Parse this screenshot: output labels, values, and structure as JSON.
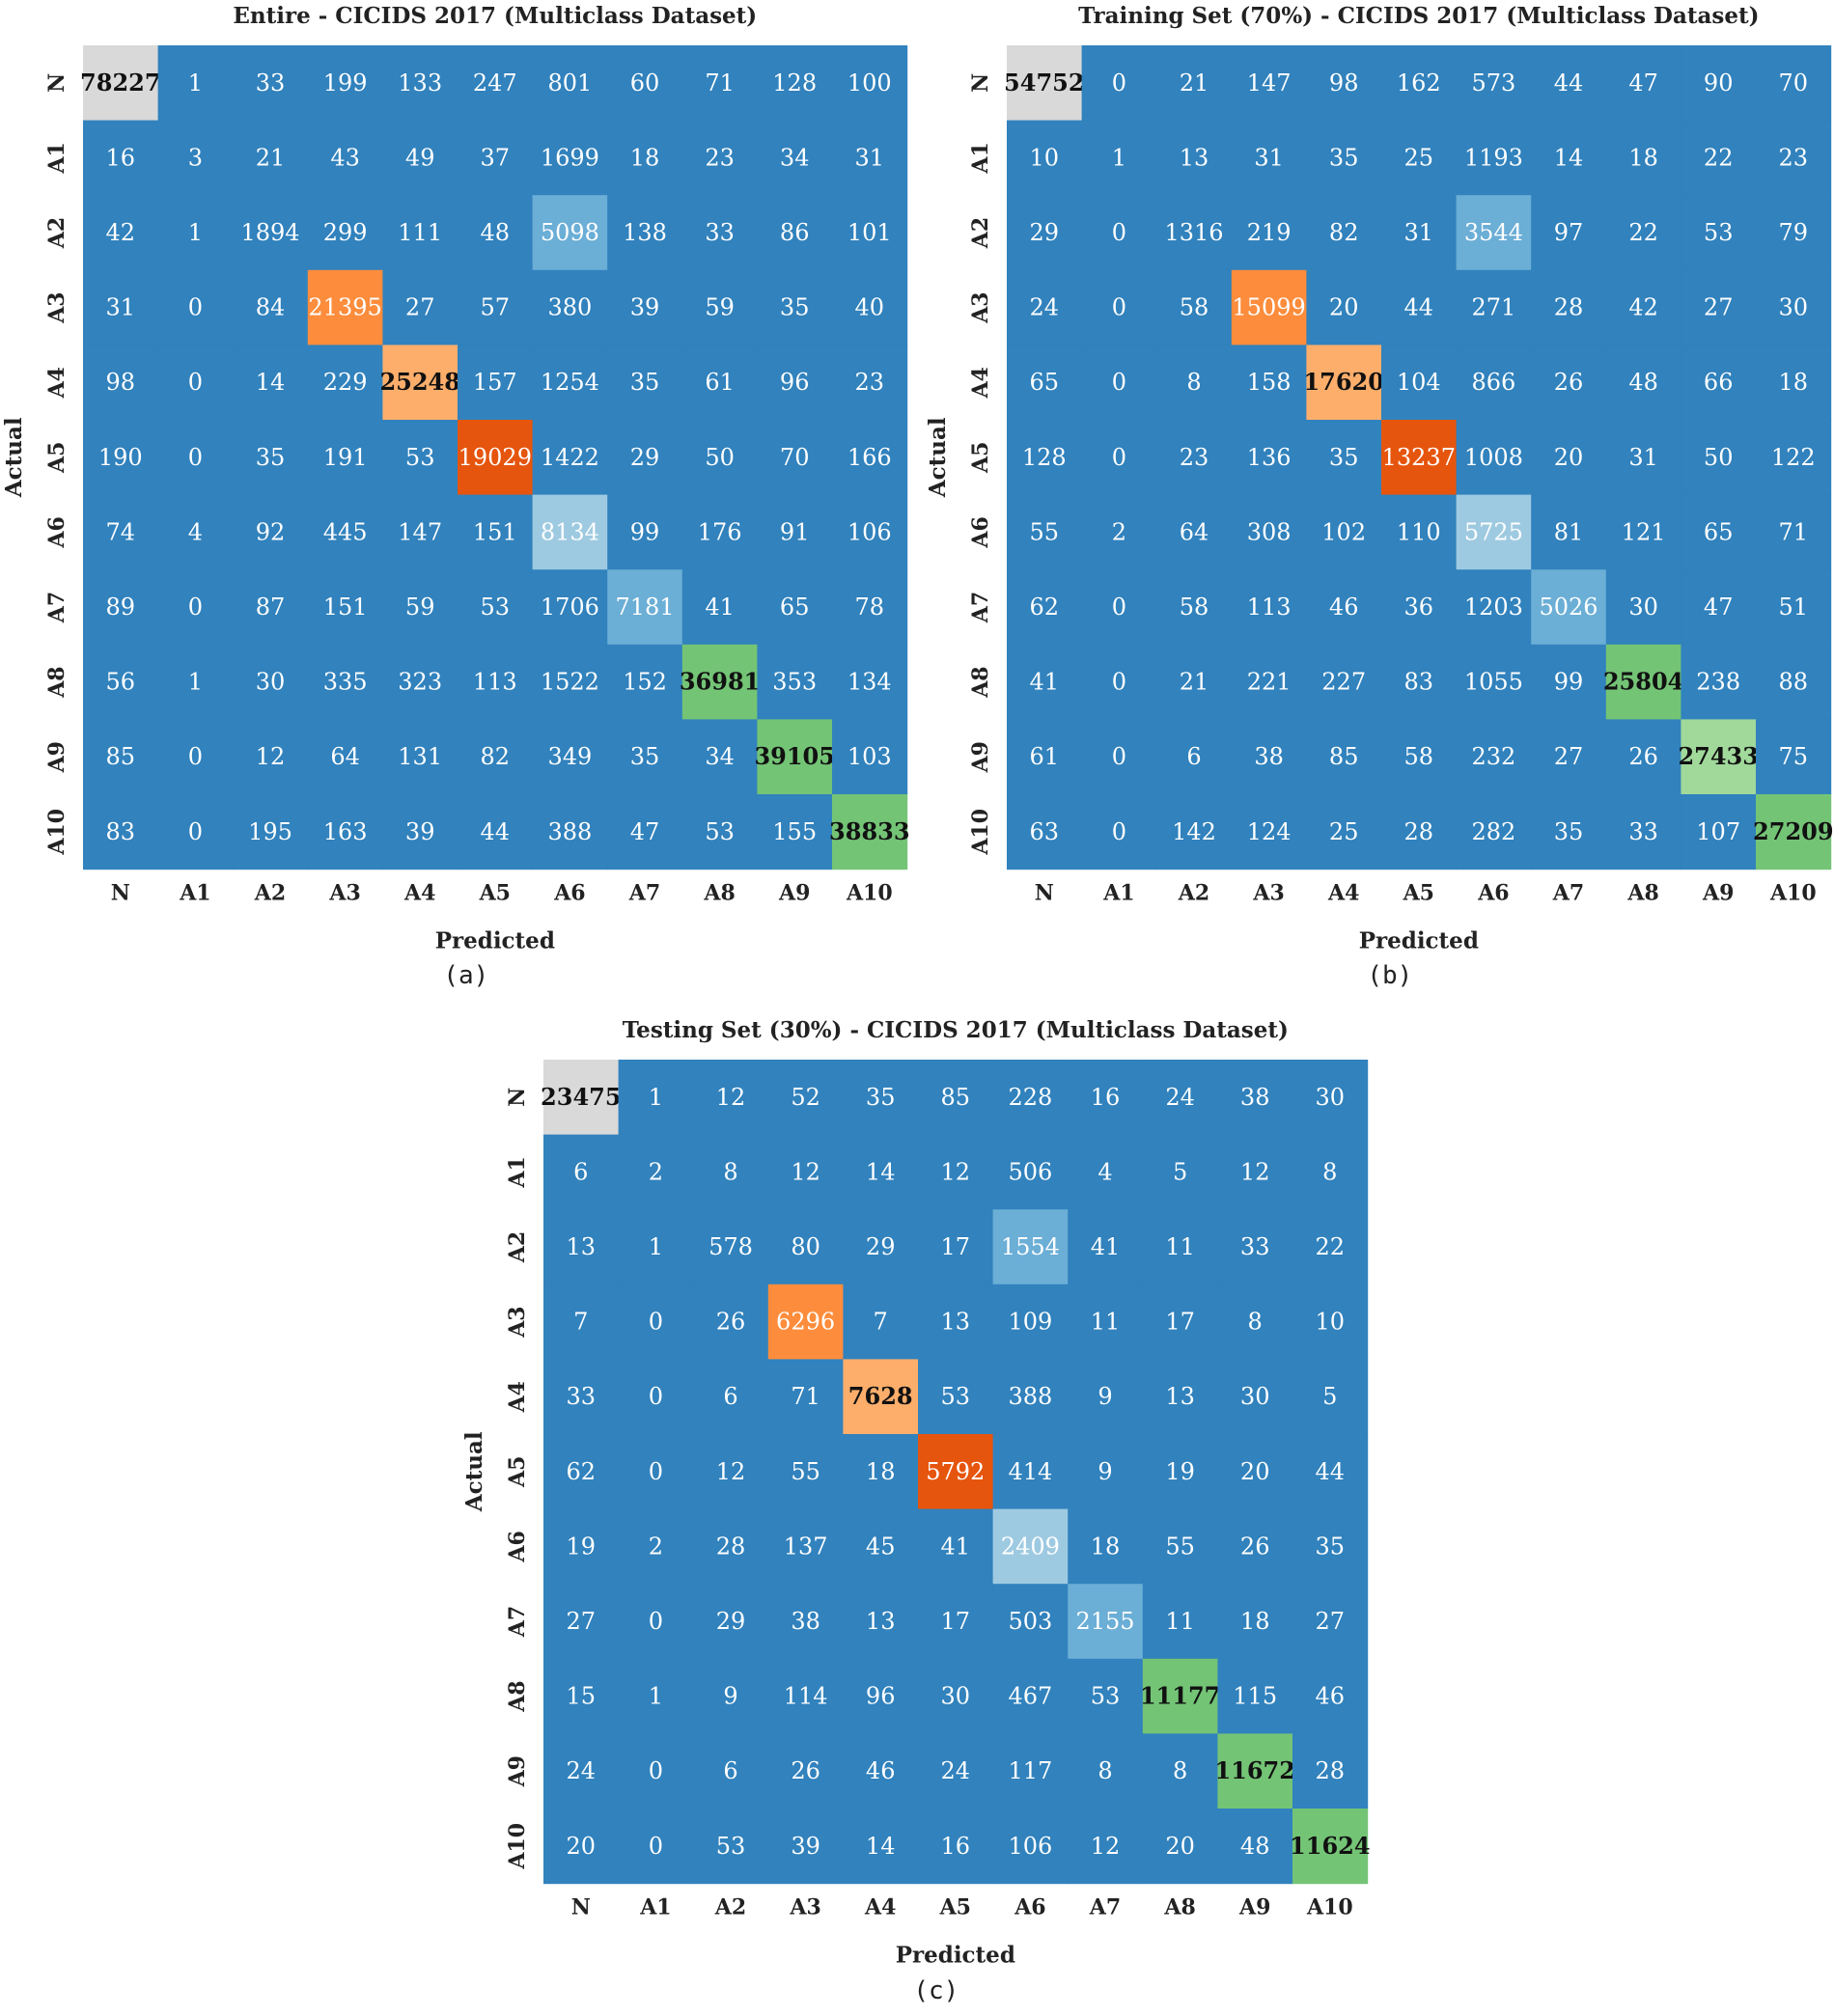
{
  "chart_data": [
    {
      "type": "heatmap",
      "panel_label": "(a)",
      "title": "Entire - CICIDS 2017 (Multiclass Dataset)",
      "xlabel": "Predicted",
      "ylabel": "Actual",
      "x_categories": [
        "N",
        "A1",
        "A2",
        "A3",
        "A4",
        "A5",
        "A6",
        "A7",
        "A8",
        "A9",
        "A10"
      ],
      "y_categories": [
        "N",
        "A1",
        "A2",
        "A3",
        "A4",
        "A5",
        "A6",
        "A7",
        "A8",
        "A9",
        "A10"
      ],
      "values": [
        [
          78227,
          1,
          33,
          199,
          133,
          247,
          801,
          60,
          71,
          128,
          100
        ],
        [
          16,
          3,
          21,
          43,
          49,
          37,
          1699,
          18,
          23,
          34,
          31
        ],
        [
          42,
          1,
          1894,
          299,
          111,
          48,
          5098,
          138,
          33,
          86,
          101
        ],
        [
          31,
          0,
          84,
          21395,
          27,
          57,
          380,
          39,
          59,
          35,
          40
        ],
        [
          98,
          0,
          14,
          229,
          25248,
          157,
          1254,
          35,
          61,
          96,
          23
        ],
        [
          190,
          0,
          35,
          191,
          53,
          19029,
          1422,
          29,
          50,
          70,
          166
        ],
        [
          74,
          4,
          92,
          445,
          147,
          151,
          8134,
          99,
          176,
          91,
          106
        ],
        [
          89,
          0,
          87,
          151,
          59,
          53,
          1706,
          7181,
          41,
          65,
          78
        ],
        [
          56,
          1,
          30,
          335,
          323,
          113,
          1522,
          152,
          36981,
          353,
          134
        ],
        [
          85,
          0,
          12,
          64,
          131,
          82,
          349,
          35,
          34,
          39105,
          103
        ],
        [
          83,
          0,
          195,
          163,
          39,
          44,
          388,
          47,
          53,
          155,
          38833
        ]
      ]
    },
    {
      "type": "heatmap",
      "panel_label": "(b)",
      "title": "Training Set (70%) - CICIDS 2017 (Multiclass Dataset)",
      "xlabel": "Predicted",
      "ylabel": "Actual",
      "x_categories": [
        "N",
        "A1",
        "A2",
        "A3",
        "A4",
        "A5",
        "A6",
        "A7",
        "A8",
        "A9",
        "A10"
      ],
      "y_categories": [
        "N",
        "A1",
        "A2",
        "A3",
        "A4",
        "A5",
        "A6",
        "A7",
        "A8",
        "A9",
        "A10"
      ],
      "values": [
        [
          54752,
          0,
          21,
          147,
          98,
          162,
          573,
          44,
          47,
          90,
          70
        ],
        [
          10,
          1,
          13,
          31,
          35,
          25,
          1193,
          14,
          18,
          22,
          23
        ],
        [
          29,
          0,
          1316,
          219,
          82,
          31,
          3544,
          97,
          22,
          53,
          79
        ],
        [
          24,
          0,
          58,
          15099,
          20,
          44,
          271,
          28,
          42,
          27,
          30
        ],
        [
          65,
          0,
          8,
          158,
          17620,
          104,
          866,
          26,
          48,
          66,
          18
        ],
        [
          128,
          0,
          23,
          136,
          35,
          13237,
          1008,
          20,
          31,
          50,
          122
        ],
        [
          55,
          2,
          64,
          308,
          102,
          110,
          5725,
          81,
          121,
          65,
          71
        ],
        [
          62,
          0,
          58,
          113,
          46,
          36,
          1203,
          5026,
          30,
          47,
          51
        ],
        [
          41,
          0,
          21,
          221,
          227,
          83,
          1055,
          99,
          25804,
          238,
          88
        ],
        [
          61,
          0,
          6,
          38,
          85,
          58,
          232,
          27,
          26,
          27433,
          75
        ],
        [
          63,
          0,
          142,
          124,
          25,
          28,
          282,
          35,
          33,
          107,
          27209
        ]
      ]
    },
    {
      "type": "heatmap",
      "panel_label": "(c)",
      "title": "Testing Set (30%) - CICIDS 2017 (Multiclass Dataset)",
      "xlabel": "Predicted",
      "ylabel": "Actual",
      "x_categories": [
        "N",
        "A1",
        "A2",
        "A3",
        "A4",
        "A5",
        "A6",
        "A7",
        "A8",
        "A9",
        "A10"
      ],
      "y_categories": [
        "N",
        "A1",
        "A2",
        "A3",
        "A4",
        "A5",
        "A6",
        "A7",
        "A8",
        "A9",
        "A10"
      ],
      "values": [
        [
          23475,
          1,
          12,
          52,
          35,
          85,
          228,
          16,
          24,
          38,
          30
        ],
        [
          6,
          2,
          8,
          12,
          14,
          12,
          506,
          4,
          5,
          12,
          8
        ],
        [
          13,
          1,
          578,
          80,
          29,
          17,
          1554,
          41,
          11,
          33,
          22
        ],
        [
          7,
          0,
          26,
          6296,
          7,
          13,
          109,
          11,
          17,
          8,
          10
        ],
        [
          33,
          0,
          6,
          71,
          7628,
          53,
          388,
          9,
          13,
          30,
          5
        ],
        [
          62,
          0,
          12,
          55,
          18,
          5792,
          414,
          9,
          19,
          20,
          44
        ],
        [
          19,
          2,
          28,
          137,
          45,
          41,
          2409,
          18,
          55,
          26,
          35
        ],
        [
          27,
          0,
          29,
          38,
          13,
          17,
          503,
          2155,
          11,
          18,
          27
        ],
        [
          15,
          1,
          9,
          114,
          96,
          30,
          467,
          53,
          11177,
          115,
          46
        ],
        [
          24,
          0,
          6,
          26,
          46,
          24,
          117,
          8,
          8,
          11672,
          28
        ],
        [
          20,
          0,
          53,
          39,
          14,
          16,
          106,
          12,
          20,
          48,
          11624
        ]
      ]
    }
  ],
  "colors": {
    "base": "#3182bd",
    "light_blue": "#6baed6",
    "lighter_blue": "#9ecae1",
    "orange": "#fd8d3c",
    "light_orange": "#fdae6b",
    "dark_orange": "#e6550d",
    "green": "#74c476",
    "light_green": "#a1d99b",
    "grey": "#d9d9d9"
  },
  "cell_colors": [
    {
      "0,0": "grey",
      "2,6": "light_blue",
      "3,3": "orange",
      "4,4": "light_orange",
      "5,5": "dark_orange",
      "6,6": "lighter_blue",
      "7,7": "light_blue",
      "8,8": "green",
      "9,9": "green",
      "10,10": "green"
    },
    {
      "0,0": "grey",
      "2,6": "light_blue",
      "3,3": "orange",
      "4,4": "light_orange",
      "5,5": "dark_orange",
      "6,6": "lighter_blue",
      "7,7": "light_blue",
      "8,8": "green",
      "9,9": "light_green",
      "10,10": "green"
    },
    {
      "0,0": "grey",
      "2,6": "light_blue",
      "3,3": "orange",
      "4,4": "light_orange",
      "5,5": "dark_orange",
      "6,6": "lighter_blue",
      "7,7": "light_blue",
      "8,8": "green",
      "9,9": "green",
      "10,10": "green"
    }
  ],
  "dark_text_cells": [
    "0,0",
    "4,4",
    "8,8",
    "9,9",
    "10,10"
  ]
}
